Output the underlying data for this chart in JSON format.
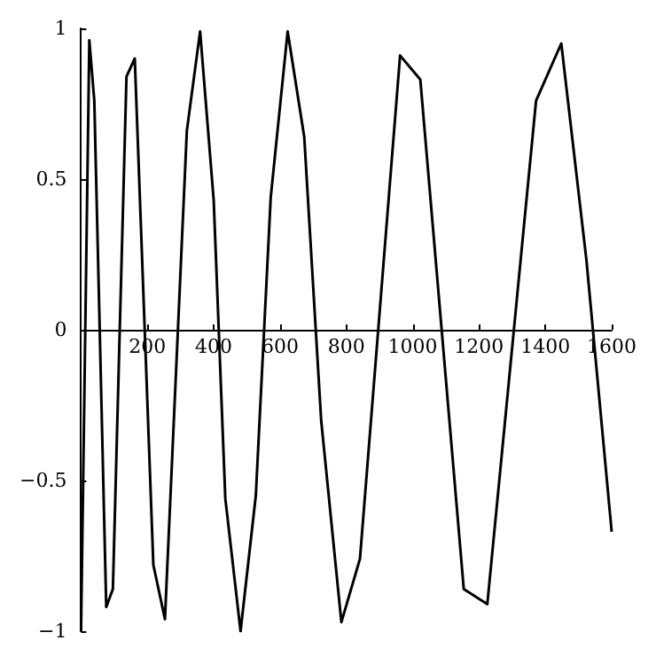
{
  "chart_data": {
    "type": "line",
    "x": [
      0,
      25,
      40,
      76,
      96,
      137,
      162,
      218,
      253,
      319,
      359,
      400,
      435,
      481,
      527,
      572,
      623,
      673,
      724,
      785,
      841,
      962,
      1023,
      1154,
      1225,
      1372,
      1448,
      1524,
      1600
    ],
    "series": [
      {
        "color": "#000000",
        "values": [
          -1,
          0.96,
          0.76,
          -0.92,
          -0.86,
          0.84,
          0.9,
          -0.78,
          -0.96,
          0.66,
          0.99,
          0.43,
          -0.56,
          -1,
          -0.55,
          0.44,
          0.99,
          0.64,
          -0.3,
          -0.97,
          -0.76,
          0.91,
          0.83,
          -0.86,
          -0.91,
          0.76,
          0.95,
          0.23,
          -0.67
        ]
      }
    ],
    "xlim": [
      0,
      1600
    ],
    "xticks": [
      200,
      400,
      600,
      800,
      1000,
      1200,
      1400,
      1600
    ],
    "ylim": [
      -1,
      1
    ],
    "yticks": [
      {
        "value": -1,
        "label": "−1"
      },
      {
        "value": -0.5,
        "label": "−0.5"
      },
      0,
      0.5,
      1
    ],
    "grid": false,
    "marker": "none",
    "line_style": "solid"
  }
}
